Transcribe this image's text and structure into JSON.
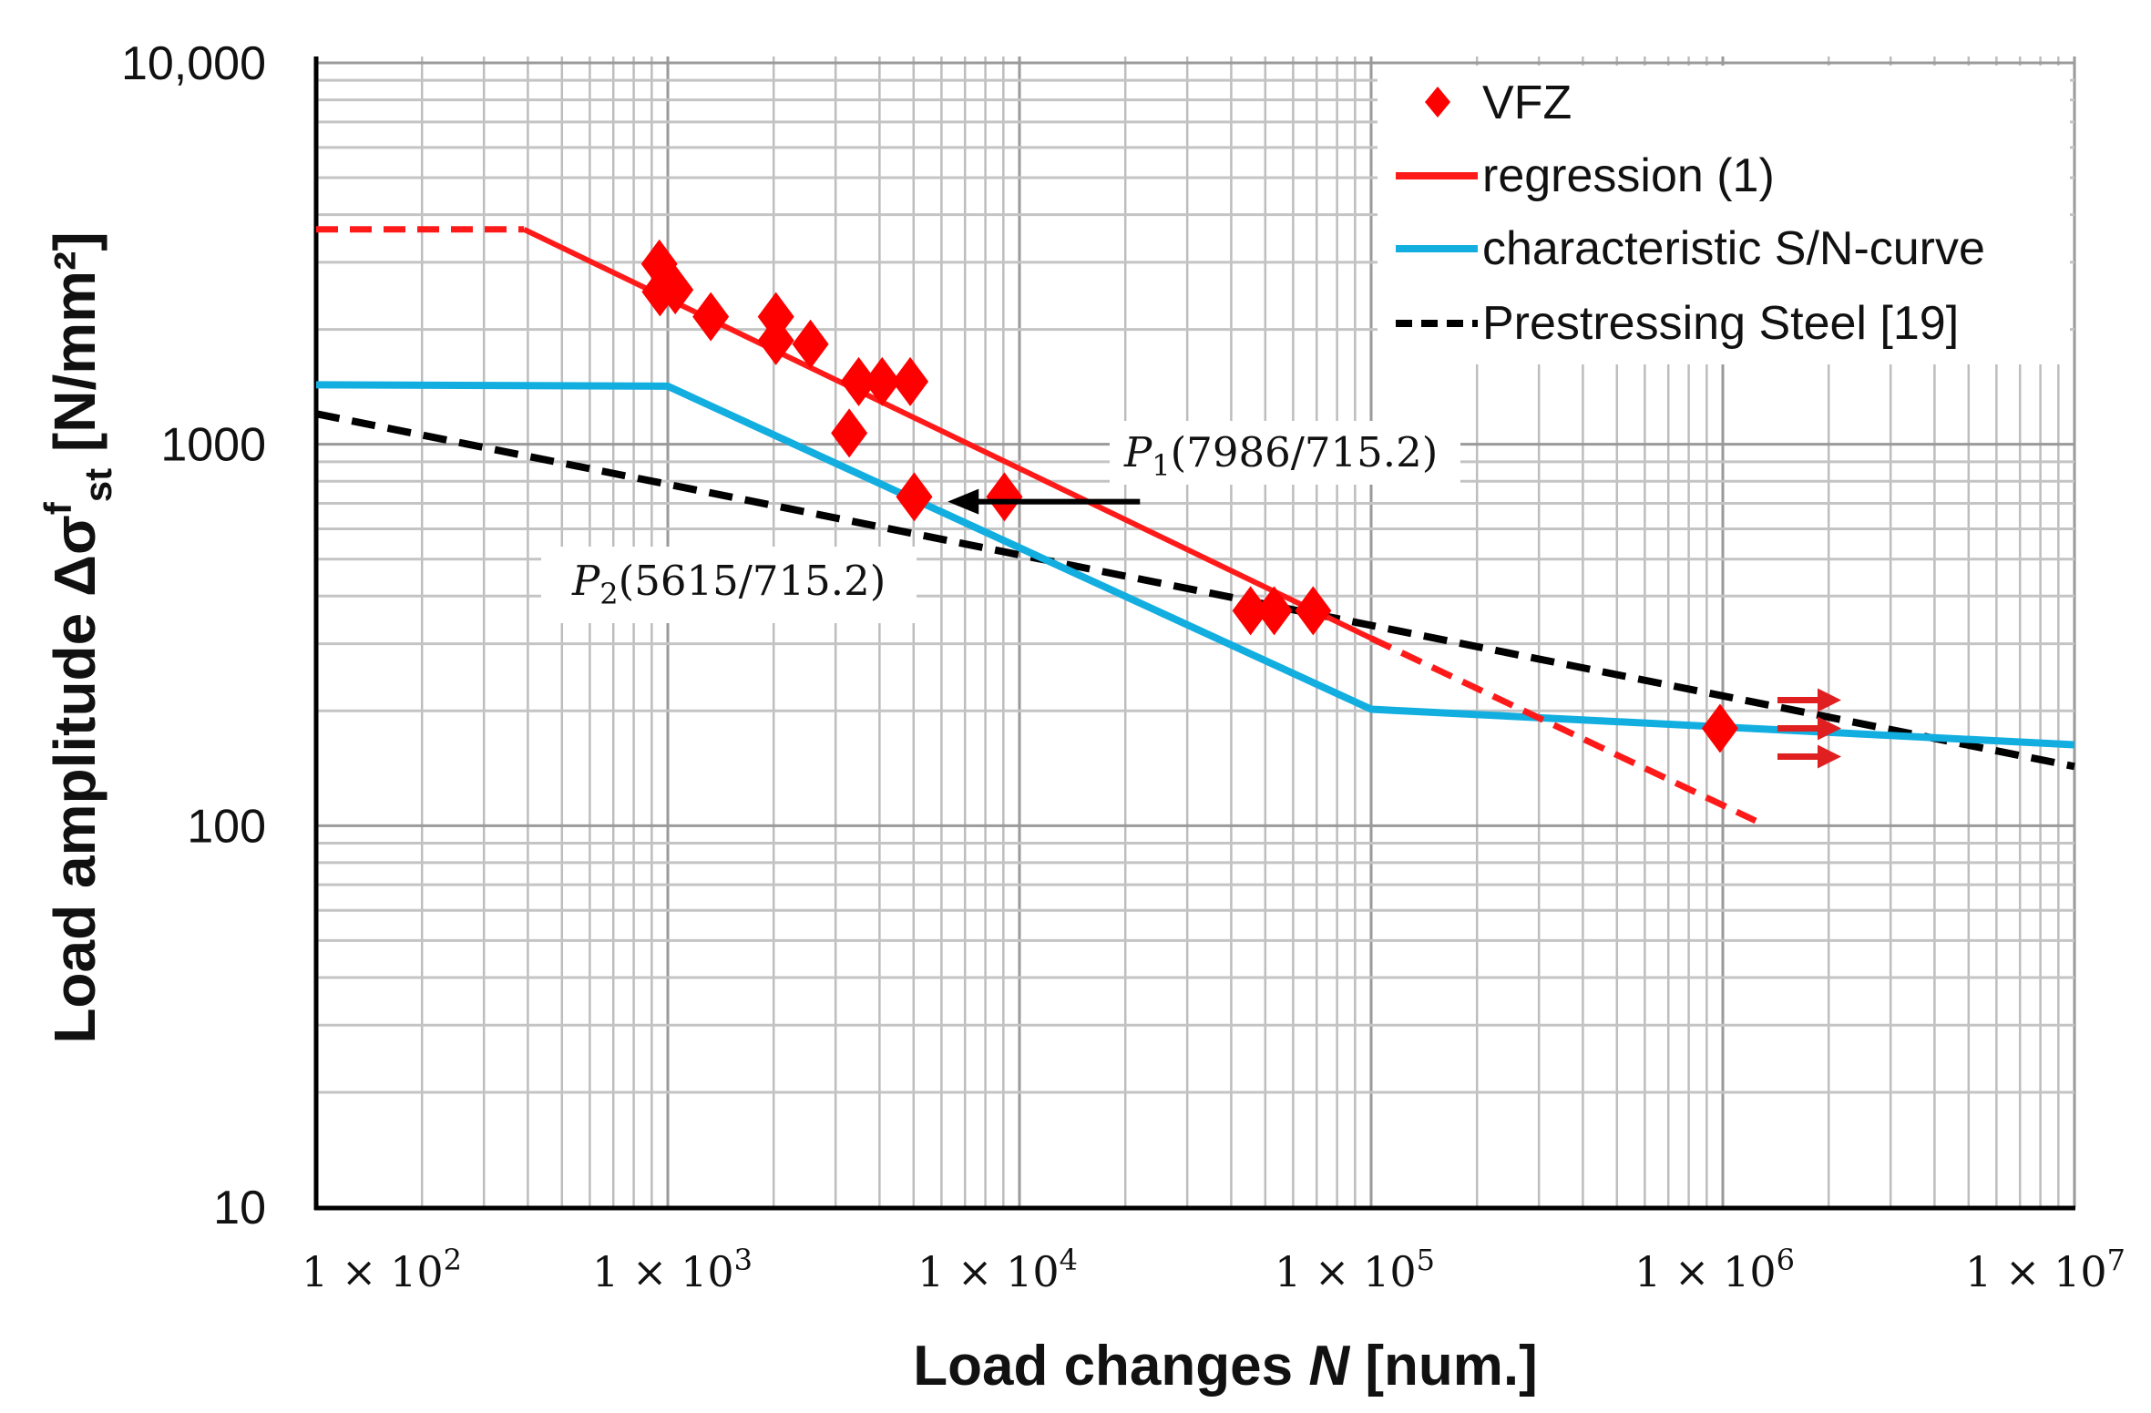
{
  "chart_data": {
    "type": "line",
    "title": "",
    "xlabel": "Load changes N [num.]",
    "xlabel_parts": {
      "pre": "Load changes ",
      "var": "N",
      "post": " [num.]"
    },
    "ylabel": "Load amplitude Δσ^f_st [N/mm²]",
    "ylabel_parts": {
      "pre": "Load amplitude Δσ",
      "sup": "f",
      "sub": "st",
      "post": " [N/mm²]"
    },
    "xscale": "log",
    "yscale": "log",
    "xlim": [
      100,
      10000000
    ],
    "ylim": [
      10,
      10000
    ],
    "grid": true,
    "x_tick_labels": [
      {
        "base": "1 × 10",
        "exp": "2"
      },
      {
        "base": "1 × 10",
        "exp": "3"
      },
      {
        "base": "1 × 10",
        "exp": "4"
      },
      {
        "base": "1 × 10",
        "exp": "5"
      },
      {
        "base": "1 × 10",
        "exp": "6"
      },
      {
        "base": "1 × 10",
        "exp": "7"
      }
    ],
    "y_tick_labels": [
      "10,000",
      "1000",
      "100",
      "10"
    ],
    "y_tick_values": [
      10000,
      1000,
      100,
      10
    ],
    "legend_position": "top-right",
    "series": [
      {
        "name": "VFZ",
        "kind": "scatter",
        "color": "#ff0000",
        "points": [
          [
            946,
            2970
          ],
          [
            950,
            2510
          ],
          [
            1050,
            2540
          ],
          [
            1325,
            2160
          ],
          [
            2030,
            2160
          ],
          [
            2030,
            1870
          ],
          [
            2545,
            1830
          ],
          [
            3490,
            1460
          ],
          [
            4070,
            1460
          ],
          [
            4890,
            1460
          ],
          [
            3280,
            1070
          ],
          [
            5020,
            728
          ],
          [
            9060,
            728
          ],
          [
            45400,
            366
          ],
          [
            53000,
            366
          ],
          [
            68400,
            366
          ],
          [
            982000,
            180
          ]
        ]
      },
      {
        "name": "regression (1)",
        "kind": "line",
        "color": "#ff1a1a",
        "solid": [
          [
            390,
            3660
          ],
          [
            100000,
            310
          ]
        ],
        "dashed": [
          [
            [
              100,
              3660
            ],
            [
              390,
              3660
            ]
          ],
          [
            [
              100000,
              310
            ],
            [
              1240000,
              103
            ]
          ]
        ]
      },
      {
        "name": "characteristic S/N-curve",
        "kind": "line",
        "color": "#12aee0",
        "points": [
          [
            100,
            1432
          ],
          [
            1000,
            1420
          ],
          [
            100000,
            202
          ],
          [
            10000000,
            163
          ]
        ]
      },
      {
        "name": "Prestressing Steel [19]",
        "kind": "dashed-line",
        "color": "#000000",
        "points": [
          [
            100,
            1202
          ],
          [
            10000000,
            143
          ]
        ]
      }
    ],
    "annotations": [
      {
        "label": "P",
        "sub": "1",
        "text": "(7986/715.2)",
        "point": [
          7986,
          715.2
        ]
      },
      {
        "label": "P",
        "sub": "2",
        "text": "(5615/715.2)",
        "point": [
          5615,
          715.2
        ]
      }
    ],
    "runout_arrows": {
      "at": [
        1000000,
        180
      ],
      "count": 3,
      "color": "#e02020"
    }
  }
}
